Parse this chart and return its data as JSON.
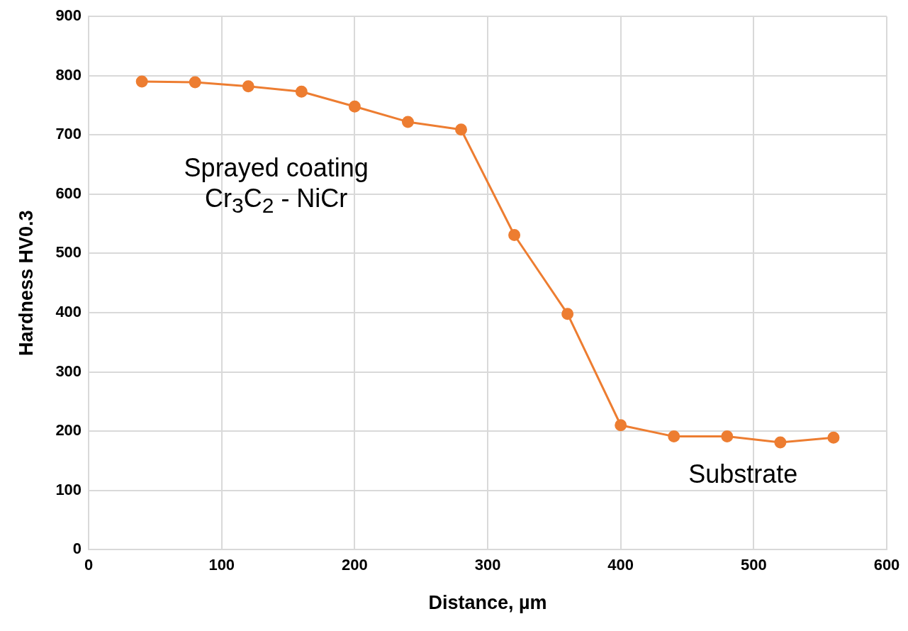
{
  "chart_data": {
    "type": "line",
    "xlabel": "Distance, µm",
    "ylabel": "Hardness HV0.3",
    "x": [
      40,
      80,
      120,
      160,
      200,
      240,
      280,
      320,
      360,
      400,
      440,
      480,
      520,
      560
    ],
    "series": [
      {
        "color": "#ed7d31",
        "values": [
          790,
          789,
          782,
          773,
          748,
          722,
          709,
          531,
          398,
          210,
          191,
          191,
          181,
          189
        ]
      }
    ],
    "xlim": [
      0,
      600
    ],
    "xticks": [
      0,
      100,
      200,
      300,
      400,
      500,
      600
    ],
    "ylim": [
      0,
      900
    ],
    "yticks": [
      0,
      100,
      200,
      300,
      400,
      500,
      600,
      700,
      800,
      900
    ],
    "grid": true,
    "legend": false,
    "marker": "circle",
    "line_style": "solid",
    "annotations": [
      "Sprayed coating\nCr$_{3}$C$_{2}$ - NiCr",
      "Substrate"
    ]
  }
}
